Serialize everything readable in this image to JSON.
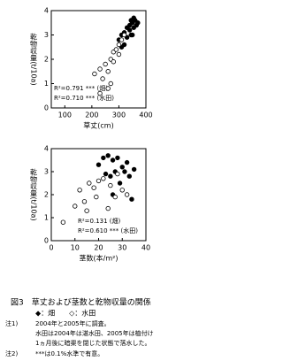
{
  "chart_data": [
    {
      "type": "scatter",
      "xlabel": "草丈(cm)",
      "ylabel": "乾物収量(t/10a)",
      "xlim": [
        50,
        400
      ],
      "xticks": [
        100,
        200,
        300,
        400
      ],
      "ylim": [
        0,
        4
      ],
      "yticks": [
        0,
        1,
        2,
        3,
        4
      ],
      "annotations": [
        "R²=0.791 *** (畑)",
        "R²=0.710 *** (水田)"
      ],
      "series": [
        {
          "color": "#000000",
          "filled": true,
          "x": [
            300,
            310,
            320,
            330,
            340,
            345,
            350,
            355,
            360,
            365,
            370,
            330,
            320,
            340,
            350,
            310,
            355,
            345
          ],
          "values": [
            2.8,
            3.0,
            3.1,
            3.3,
            3.4,
            3.6,
            3.5,
            3.7,
            3.6,
            3.4,
            3.5,
            2.9,
            2.6,
            3.2,
            3.0,
            2.5,
            3.3,
            3.0
          ]
        },
        {
          "color": "#000000",
          "filled": false,
          "x": [
            230,
            210,
            230,
            250,
            260,
            270,
            280,
            300,
            310,
            290,
            240,
            260,
            280,
            300,
            320,
            270
          ],
          "values": [
            0.6,
            1.4,
            1.6,
            1.8,
            1.5,
            2.0,
            2.3,
            2.6,
            2.8,
            2.4,
            1.2,
            0.8,
            1.9,
            2.2,
            3.0,
            1.0
          ]
        }
      ]
    },
    {
      "type": "scatter",
      "xlabel": "茎数(本/m²)",
      "ylabel": "乾物収量(t/10a)",
      "xlim": [
        0,
        40
      ],
      "xticks": [
        0,
        10,
        20,
        30,
        40
      ],
      "ylim": [
        0,
        4
      ],
      "yticks": [
        0,
        1,
        2,
        3,
        4
      ],
      "annotations": [
        "R²=0.131 (畑)",
        "R²=0.610 *** (水田)"
      ],
      "series": [
        {
          "color": "#000000",
          "filled": true,
          "x": [
            22,
            24,
            26,
            28,
            27,
            30,
            32,
            25,
            29,
            33,
            20,
            23,
            31,
            35,
            26,
            34
          ],
          "values": [
            3.6,
            3.7,
            3.5,
            3.6,
            3.0,
            3.2,
            3.4,
            2.8,
            2.5,
            2.8,
            3.3,
            2.9,
            3.0,
            3.1,
            2.0,
            1.8
          ]
        },
        {
          "color": "#000000",
          "filled": false,
          "x": [
            5,
            10,
            14,
            16,
            18,
            20,
            22,
            25,
            27,
            30,
            15,
            19,
            24,
            28,
            32,
            12
          ],
          "values": [
            0.8,
            1.5,
            1.7,
            2.5,
            2.3,
            2.6,
            2.7,
            2.4,
            1.9,
            2.2,
            1.3,
            1.9,
            1.4,
            2.9,
            2.0,
            2.2
          ]
        }
      ]
    }
  ],
  "caption": {
    "title": "図3　草丈および茎数と乾物収量の関係",
    "legend": "◆：畑　　◇：水田",
    "note1_label": "注1)",
    "note1": [
      "2004年と2005年に調査。",
      "水田は2004年は湛水田、2005年は植付け",
      "1ヵ月後に暗渠を閉じた状態で落水した。"
    ],
    "note2_label": "注2)",
    "note2": "***は0.1%水準で有意。"
  }
}
